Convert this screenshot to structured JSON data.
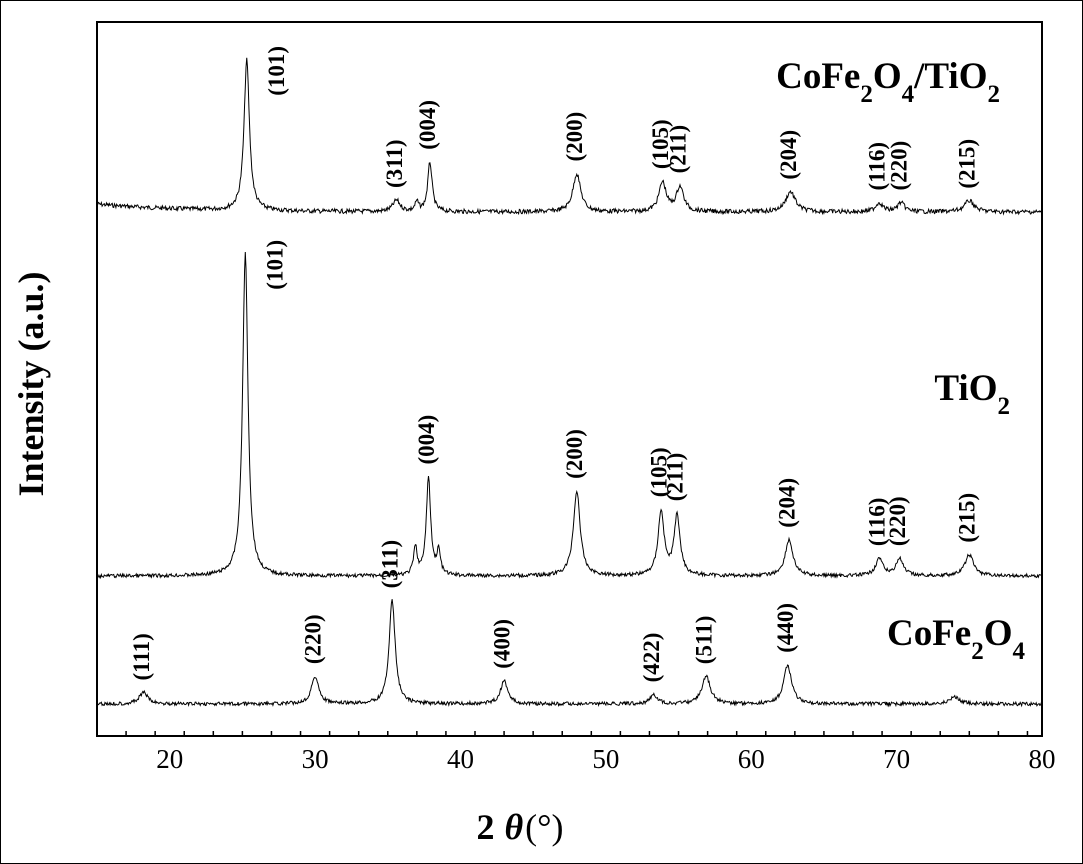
{
  "chart_data": {
    "type": "line",
    "xlabel_prefix": "2",
    "xlabel_symbol": "θ",
    "xlabel_unit": "(°)",
    "ylabel": "Intensity (a.u.)",
    "xlim": [
      15,
      80
    ],
    "x_ticks": [
      20,
      30,
      40,
      50,
      60,
      70,
      80
    ],
    "grid": false,
    "series": [
      {
        "name": "CoFe2O4/TiO2",
        "baseline": 0.2,
        "peaks": [
          {
            "x": 25.3,
            "height": 0.67,
            "width": 0.22,
            "label": "(101)"
          },
          {
            "x": 35.6,
            "height": 0.05,
            "width": 0.3,
            "label": "(311)"
          },
          {
            "x": 37.0,
            "height": 0.04,
            "width": 0.15,
            "label": ""
          },
          {
            "x": 37.9,
            "height": 0.22,
            "width": 0.18,
            "label": "(004)"
          },
          {
            "x": 48.0,
            "height": 0.17,
            "width": 0.32,
            "label": "(200)"
          },
          {
            "x": 53.9,
            "height": 0.13,
            "width": 0.3,
            "label": "(105)"
          },
          {
            "x": 55.1,
            "height": 0.11,
            "width": 0.3,
            "label": "(211)"
          },
          {
            "x": 62.7,
            "height": 0.09,
            "width": 0.4,
            "label": "(204)"
          },
          {
            "x": 68.8,
            "height": 0.04,
            "width": 0.3,
            "label": "(116)"
          },
          {
            "x": 70.3,
            "height": 0.04,
            "width": 0.3,
            "label": "(220)"
          },
          {
            "x": 75.0,
            "height": 0.05,
            "width": 0.4,
            "label": "(215)"
          }
        ]
      },
      {
        "name": "TiO2",
        "baseline": 0.08,
        "peaks": [
          {
            "x": 25.2,
            "height": 1.52,
            "width": 0.22,
            "label": "(101)"
          },
          {
            "x": 36.9,
            "height": 0.13,
            "width": 0.15,
            "label": ""
          },
          {
            "x": 37.8,
            "height": 0.46,
            "width": 0.18,
            "label": "(004)"
          },
          {
            "x": 38.5,
            "height": 0.11,
            "width": 0.15,
            "label": ""
          },
          {
            "x": 48.0,
            "height": 0.4,
            "width": 0.28,
            "label": "(200)"
          },
          {
            "x": 53.8,
            "height": 0.3,
            "width": 0.25,
            "label": "(105)"
          },
          {
            "x": 54.9,
            "height": 0.28,
            "width": 0.25,
            "label": "(211)"
          },
          {
            "x": 62.6,
            "height": 0.17,
            "width": 0.32,
            "label": "(204)"
          },
          {
            "x": 68.8,
            "height": 0.08,
            "width": 0.3,
            "label": "(116)"
          },
          {
            "x": 70.2,
            "height": 0.08,
            "width": 0.3,
            "label": "(220)"
          },
          {
            "x": 75.0,
            "height": 0.1,
            "width": 0.35,
            "label": "(215)"
          }
        ]
      },
      {
        "name": "CoFe2O4",
        "baseline": 0.02,
        "peaks": [
          {
            "x": 18.2,
            "height": 0.05,
            "width": 0.35,
            "label": "(111)"
          },
          {
            "x": 30.0,
            "height": 0.12,
            "width": 0.3,
            "label": "(220)"
          },
          {
            "x": 35.3,
            "height": 0.45,
            "width": 0.25,
            "label": "(311)"
          },
          {
            "x": 43.0,
            "height": 0.1,
            "width": 0.3,
            "label": "(400)"
          },
          {
            "x": 53.3,
            "height": 0.04,
            "width": 0.3,
            "label": "(422)"
          },
          {
            "x": 56.9,
            "height": 0.12,
            "width": 0.35,
            "label": "(511)"
          },
          {
            "x": 62.5,
            "height": 0.17,
            "width": 0.32,
            "label": "(440)"
          },
          {
            "x": 74.0,
            "height": 0.03,
            "width": 0.4,
            "label": ""
          }
        ]
      }
    ]
  }
}
